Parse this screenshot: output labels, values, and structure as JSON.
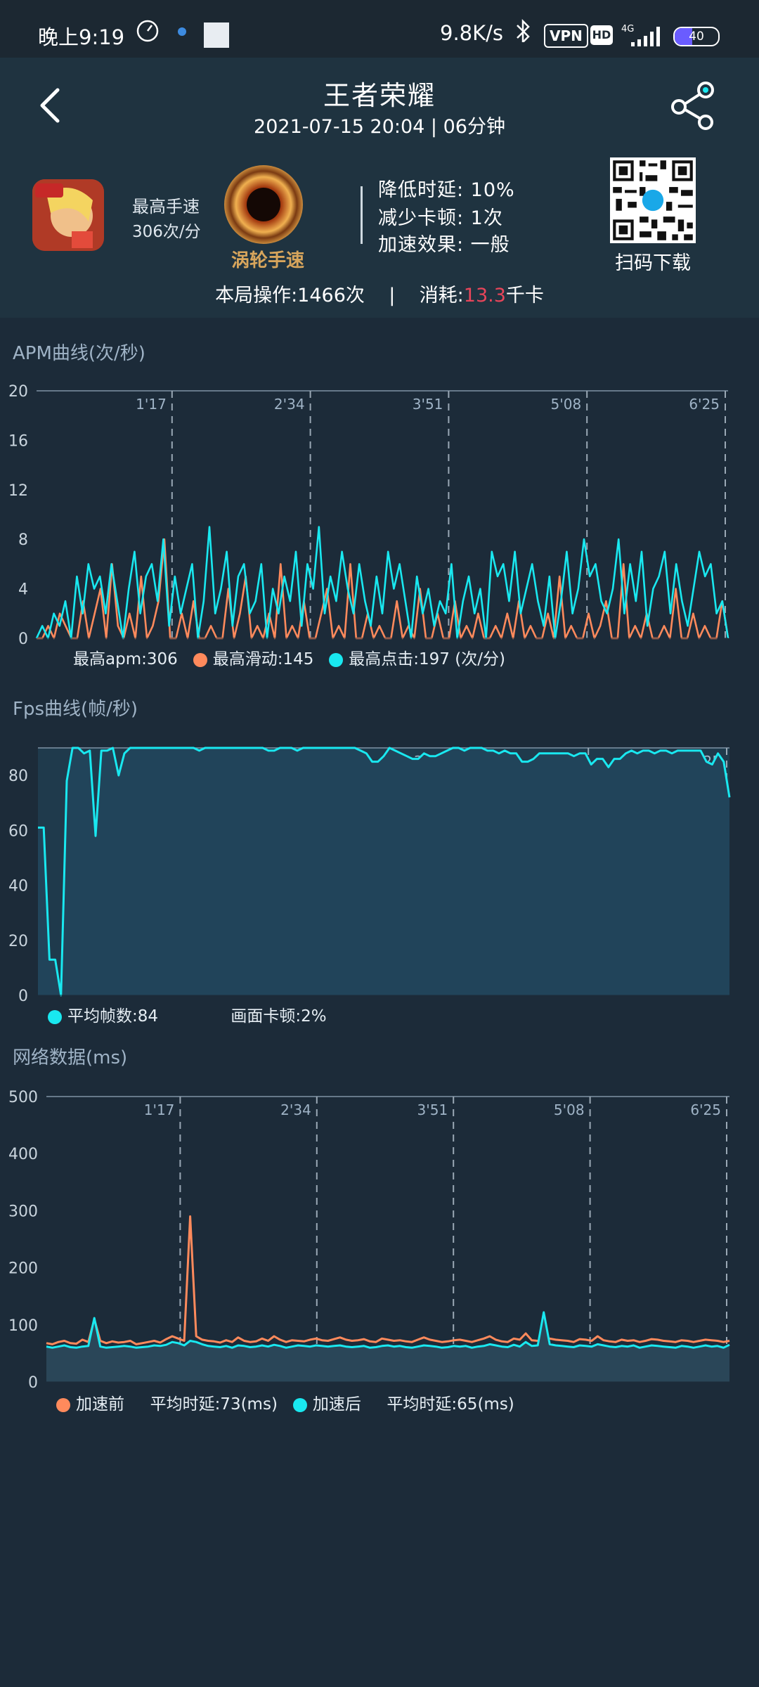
{
  "status_bar": {
    "time": "晚上9:19",
    "network_speed": "9.8K/s",
    "vpn_badge": "VPN",
    "hd_badge": "HD",
    "signal_type": "4G",
    "battery": "40"
  },
  "header": {
    "title": "王者荣耀",
    "subtitle": "2021-07-15  20:04  |  06分钟"
  },
  "summary": {
    "speed_label": "最高手速",
    "speed_value": "306次/分",
    "badge_text": "涡轮手速",
    "stats": [
      "降低时延: 10%",
      "减少卡顿: 1次",
      "加速效果: 一般"
    ],
    "qr_label": "扫码下载",
    "operations_prefix": "本局操作:1466次",
    "operations_sep": "|",
    "consume_label": "消耗:",
    "consume_value": "13.3",
    "consume_unit": "千卡"
  },
  "colors": {
    "cyan": "#19e8f0",
    "orange": "#ff8a5c",
    "bg": "#1c2b39"
  },
  "apm": {
    "title": "APM曲线(次/秒)",
    "legend_max_apm": "最高apm:306",
    "legend_max_slide": "最高滑动:145",
    "legend_max_tap": "最高点击:197  (次/分)"
  },
  "fps": {
    "title": "Fps曲线(帧/秒)",
    "legend_avg": "平均帧数:84",
    "legend_stutter": "画面卡顿:2%"
  },
  "net": {
    "title": "网络数据(ms)",
    "legend_before": "加速前",
    "legend_before_avg": "平均时延:73(ms)",
    "legend_after": "加速后",
    "legend_after_avg": "平均时延:65(ms)"
  },
  "chart_data": [
    {
      "type": "line",
      "title": "APM曲线(次/秒)",
      "ylim": [
        0,
        20
      ],
      "y_ticks": [
        "0",
        "4",
        "8",
        "12",
        "16",
        "20"
      ],
      "x_ticks": [
        "1'17",
        "2'34",
        "3'51",
        "5'08",
        "6'25"
      ],
      "series": [
        {
          "name": "最高滑动",
          "color": "#ff8a5c",
          "values": [
            0,
            0,
            1,
            0,
            2,
            1,
            0,
            0,
            3,
            0,
            2,
            4,
            0,
            6,
            1,
            0,
            2,
            0,
            5,
            0,
            1,
            3,
            8,
            0,
            0,
            2,
            0,
            3,
            0,
            0,
            1,
            0,
            0,
            4,
            0,
            2,
            5,
            0,
            1,
            0,
            2,
            0,
            6,
            0,
            1,
            0,
            3,
            0,
            0,
            2,
            4,
            0,
            1,
            0,
            6,
            0,
            0,
            2,
            0,
            1,
            0,
            0,
            3,
            0,
            1,
            0,
            4,
            0,
            0,
            2,
            0,
            0,
            3,
            0,
            1,
            0,
            2,
            0,
            0,
            1,
            0,
            2,
            0,
            3,
            0,
            1,
            0,
            0,
            2,
            0,
            5,
            0,
            1,
            0,
            0,
            2,
            0,
            1,
            3,
            0,
            0,
            6,
            0,
            1,
            0,
            2,
            0,
            0,
            1,
            0,
            4,
            0,
            0,
            2,
            0,
            1,
            0,
            0,
            3,
            0
          ]
        },
        {
          "name": "最高点击",
          "color": "#19e8f0",
          "values": [
            0,
            1,
            0,
            2,
            1,
            3,
            0,
            5,
            2,
            6,
            4,
            5,
            2,
            6,
            3,
            0,
            4,
            7,
            2,
            5,
            6,
            3,
            8,
            1,
            5,
            2,
            4,
            6,
            0,
            3,
            9,
            2,
            4,
            7,
            1,
            5,
            6,
            2,
            3,
            6,
            0,
            4,
            2,
            5,
            3,
            7,
            1,
            6,
            4,
            9,
            2,
            5,
            3,
            7,
            4,
            2,
            6,
            3,
            1,
            5,
            2,
            7,
            4,
            6,
            3,
            0,
            5,
            2,
            4,
            1,
            3,
            2,
            6,
            0,
            3,
            5,
            2,
            4,
            0,
            7,
            5,
            6,
            3,
            7,
            2,
            4,
            6,
            3,
            1,
            5,
            0,
            3,
            7,
            2,
            4,
            8,
            5,
            6,
            3,
            2,
            4,
            8,
            2,
            6,
            3,
            7,
            1,
            4,
            5,
            7,
            2,
            6,
            3,
            1,
            4,
            7,
            5,
            6,
            2,
            3,
            0
          ]
        }
      ]
    },
    {
      "type": "area",
      "title": "Fps曲线(帧/秒)",
      "ylim": [
        0,
        90
      ],
      "y_ticks": [
        "0",
        "20",
        "40",
        "60",
        "80"
      ],
      "x_ticks": [
        "1'17",
        "2'34",
        "3'51",
        "5'08",
        "6'25"
      ],
      "series": [
        {
          "name": "fps",
          "color": "#19e8f0",
          "values": [
            61,
            61,
            13,
            13,
            0,
            78,
            90,
            90,
            88,
            89,
            58,
            89,
            89,
            90,
            80,
            88,
            90,
            90,
            90,
            90,
            90,
            90,
            90,
            90,
            90,
            90,
            90,
            90,
            89,
            90,
            90,
            90,
            90,
            90,
            90,
            90,
            90,
            90,
            90,
            90,
            89,
            89,
            90,
            90,
            90,
            89,
            90,
            90,
            90,
            90,
            90,
            90,
            90,
            90,
            90,
            90,
            89,
            88,
            85,
            85,
            87,
            90,
            89,
            88,
            87,
            86,
            86,
            88,
            87,
            87,
            88,
            89,
            90,
            90,
            89,
            90,
            90,
            90,
            89,
            89,
            88,
            89,
            88,
            88,
            85,
            85,
            86,
            88,
            88,
            88,
            88,
            88,
            88,
            87,
            88,
            88,
            84,
            86,
            86,
            83,
            86,
            86,
            88,
            89,
            88,
            89,
            89,
            88,
            89,
            89,
            88,
            89,
            89,
            89,
            89,
            89,
            85,
            84,
            88,
            85,
            72
          ]
        }
      ]
    },
    {
      "type": "line",
      "title": "网络数据(ms)",
      "ylim": [
        0,
        500
      ],
      "y_ticks": [
        "0",
        "100",
        "200",
        "300",
        "400",
        "500"
      ],
      "x_ticks": [
        "1'17",
        "2'34",
        "3'51",
        "5'08",
        "6'25"
      ],
      "series": [
        {
          "name": "加速前",
          "color": "#ff8a5c",
          "values": [
            68,
            66,
            70,
            72,
            68,
            67,
            74,
            70,
            110,
            72,
            68,
            71,
            69,
            70,
            72,
            66,
            68,
            70,
            72,
            69,
            75,
            80,
            76,
            72,
            290,
            80,
            74,
            72,
            71,
            69,
            73,
            70,
            78,
            72,
            70,
            71,
            76,
            72,
            80,
            74,
            70,
            73,
            72,
            71,
            74,
            76,
            73,
            72,
            75,
            78,
            74,
            72,
            73,
            75,
            71,
            70,
            76,
            74,
            72,
            73,
            71,
            70,
            74,
            78,
            74,
            72,
            70,
            71,
            73,
            74,
            72,
            70,
            73,
            76,
            80,
            74,
            71,
            70,
            76,
            74,
            85,
            73,
            72,
            71,
            76,
            74,
            73,
            72,
            70,
            75,
            74,
            72,
            80,
            73,
            71,
            70,
            74,
            72,
            73,
            70,
            72,
            75,
            74,
            72,
            71,
            70,
            73,
            72,
            70,
            72,
            74,
            73,
            72,
            70,
            72
          ]
        },
        {
          "name": "加速后",
          "color": "#19e8f0",
          "values": [
            62,
            60,
            62,
            64,
            61,
            60,
            62,
            63,
            112,
            62,
            60,
            61,
            62,
            63,
            62,
            60,
            61,
            62,
            64,
            63,
            65,
            70,
            68,
            64,
            72,
            70,
            66,
            63,
            62,
            61,
            63,
            60,
            64,
            63,
            61,
            62,
            64,
            62,
            65,
            63,
            60,
            62,
            64,
            63,
            62,
            64,
            63,
            62,
            63,
            64,
            62,
            61,
            62,
            63,
            60,
            61,
            63,
            64,
            62,
            63,
            61,
            60,
            62,
            64,
            63,
            62,
            60,
            61,
            63,
            62,
            63,
            60,
            62,
            63,
            66,
            64,
            62,
            61,
            65,
            62,
            70,
            63,
            64,
            122,
            66,
            64,
            63,
            62,
            61,
            64,
            63,
            62,
            66,
            64,
            62,
            61,
            63,
            62,
            64,
            60,
            62,
            64,
            63,
            62,
            61,
            60,
            63,
            62,
            60,
            62,
            64,
            62,
            63,
            60,
            65
          ]
        }
      ]
    }
  ]
}
